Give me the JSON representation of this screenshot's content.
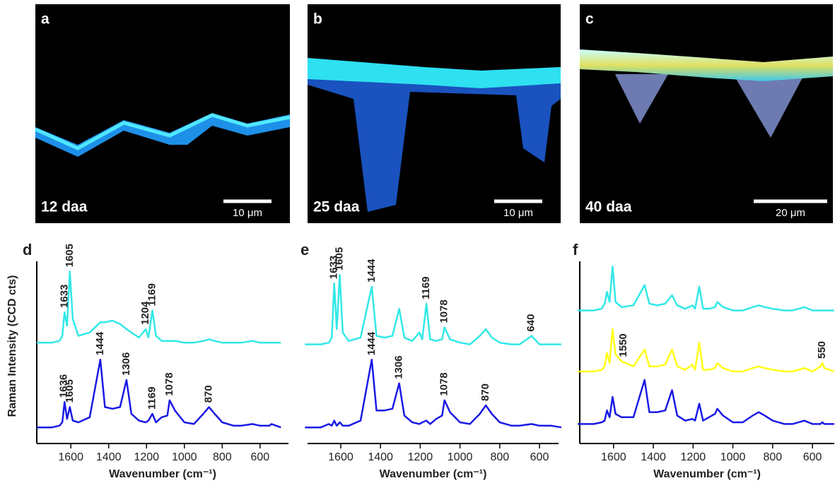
{
  "images": [
    {
      "panel": "a",
      "label": "12 daa",
      "scale_bar": "10 μm"
    },
    {
      "panel": "b",
      "label": "25 daa",
      "scale_bar": "10 μm"
    },
    {
      "panel": "c",
      "label": "40 daa",
      "scale_bar": "20 μm"
    }
  ],
  "chart_data": [
    {
      "type": "line",
      "panel": "d",
      "ylabel": "Raman Intensity (CCD cts)",
      "xlabel": "Wavenumber (cm⁻¹)",
      "xlim": [
        1780,
        450
      ],
      "ylim": [
        0,
        100
      ],
      "xticks": [
        1600,
        1400,
        1200,
        1000,
        800,
        600
      ],
      "x": [
        1780,
        1700,
        1660,
        1645,
        1633,
        1620,
        1605,
        1590,
        1560,
        1500,
        1444,
        1420,
        1380,
        1340,
        1306,
        1280,
        1240,
        1204,
        1190,
        1169,
        1150,
        1120,
        1090,
        1078,
        1050,
        1000,
        950,
        900,
        870,
        840,
        800,
        740,
        700,
        640,
        600,
        560,
        550,
        540,
        490
      ],
      "series": [
        {
          "color": "#33e8e8",
          "peaks": [
            1633,
            1605,
            1204,
            1169
          ],
          "values": [
            52,
            52,
            53,
            56,
            70,
            62,
            94,
            66,
            56,
            58,
            64,
            64,
            65,
            63,
            60,
            58,
            55,
            60,
            55,
            71,
            56,
            53,
            53,
            53,
            53,
            52,
            52,
            53,
            54,
            53,
            52,
            52,
            52,
            53,
            52,
            52,
            52,
            52,
            52
          ]
        },
        {
          "color": "#1a1ae6",
          "peaks": [
            1636,
            1605,
            1444,
            1306,
            1169,
            1078,
            870
          ],
          "values": [
            2,
            2,
            3,
            5,
            17,
            7,
            14,
            6,
            5,
            8,
            42,
            14,
            13,
            14,
            30,
            10,
            6,
            5,
            6,
            10,
            5,
            8,
            9,
            18,
            12,
            5,
            4,
            10,
            14,
            10,
            5,
            3,
            3,
            4,
            3,
            3,
            3,
            4,
            2
          ]
        }
      ]
    },
    {
      "type": "line",
      "panel": "e",
      "xlabel": "Wavenumber (cm⁻¹)",
      "xlim": [
        1767,
        504
      ],
      "ylim": [
        0,
        100
      ],
      "xticks": [
        1600,
        1400,
        1200,
        1000,
        800,
        600
      ],
      "x": [
        1780,
        1700,
        1660,
        1645,
        1633,
        1620,
        1605,
        1590,
        1560,
        1500,
        1444,
        1420,
        1380,
        1340,
        1306,
        1280,
        1240,
        1204,
        1190,
        1169,
        1150,
        1120,
        1090,
        1078,
        1050,
        1000,
        950,
        900,
        870,
        840,
        800,
        740,
        700,
        640,
        600,
        560,
        550,
        540,
        490
      ],
      "series": [
        {
          "color": "#33e8e8",
          "peaks": [
            1633,
            1605,
            1444,
            1169,
            1078,
            640
          ],
          "values": [
            51,
            51,
            52,
            55,
            87,
            60,
            92,
            58,
            53,
            55,
            85,
            56,
            55,
            56,
            72,
            55,
            53,
            58,
            54,
            75,
            54,
            53,
            54,
            61,
            54,
            52,
            51,
            56,
            60,
            55,
            52,
            51,
            51,
            56,
            51,
            51,
            51,
            51,
            51
          ]
        },
        {
          "color": "#1a1ae6",
          "peaks": [
            1444,
            1306,
            1078,
            870
          ],
          "values": [
            2,
            2,
            4,
            3,
            6,
            3,
            5,
            3,
            3,
            6,
            42,
            12,
            12,
            13,
            28,
            9,
            5,
            4,
            5,
            6,
            4,
            7,
            9,
            18,
            11,
            5,
            4,
            10,
            15,
            10,
            5,
            3,
            3,
            4,
            3,
            3,
            3,
            3,
            2
          ]
        }
      ]
    },
    {
      "type": "line",
      "panel": "f",
      "xlabel": "Wavenumber (cm⁻¹)",
      "xlim": [
        1770,
        490
      ],
      "ylim": [
        0,
        100
      ],
      "xticks": [
        1600,
        1400,
        1200,
        1000,
        800,
        600
      ],
      "x": [
        1780,
        1700,
        1660,
        1645,
        1633,
        1620,
        1605,
        1590,
        1560,
        1500,
        1444,
        1420,
        1380,
        1340,
        1306,
        1280,
        1240,
        1204,
        1190,
        1169,
        1150,
        1120,
        1090,
        1078,
        1050,
        1000,
        950,
        900,
        870,
        840,
        800,
        740,
        700,
        640,
        600,
        560,
        550,
        540,
        490
      ],
      "series": [
        {
          "color": "#33e8e8",
          "peaks": [],
          "values": [
            71,
            71,
            72,
            75,
            82,
            76,
            97,
            76,
            73,
            74,
            86,
            75,
            74,
            75,
            80,
            74,
            72,
            74,
            72,
            85,
            72,
            72,
            73,
            76,
            73,
            71,
            71,
            73,
            74,
            73,
            72,
            71,
            71,
            73,
            71,
            71,
            71,
            71,
            71
          ]
        },
        {
          "color": "#ffff1a",
          "peaks": [
            1550,
            550
          ],
          "values": [
            35,
            35,
            36,
            38,
            46,
            40,
            60,
            45,
            41,
            38,
            48,
            38,
            38,
            39,
            48,
            38,
            36,
            39,
            36,
            52,
            36,
            36,
            37,
            40,
            37,
            35,
            35,
            37,
            38,
            37,
            36,
            35,
            35,
            37,
            35,
            38,
            40,
            37,
            35
          ]
        },
        {
          "color": "#1a1ae6",
          "peaks": [],
          "values": [
            4,
            4,
            5,
            6,
            12,
            8,
            20,
            10,
            8,
            8,
            30,
            11,
            11,
            12,
            24,
            9,
            6,
            7,
            6,
            16,
            6,
            8,
            10,
            13,
            9,
            5,
            5,
            9,
            11,
            9,
            6,
            4,
            4,
            6,
            4,
            4,
            5,
            4,
            4
          ]
        }
      ]
    }
  ]
}
